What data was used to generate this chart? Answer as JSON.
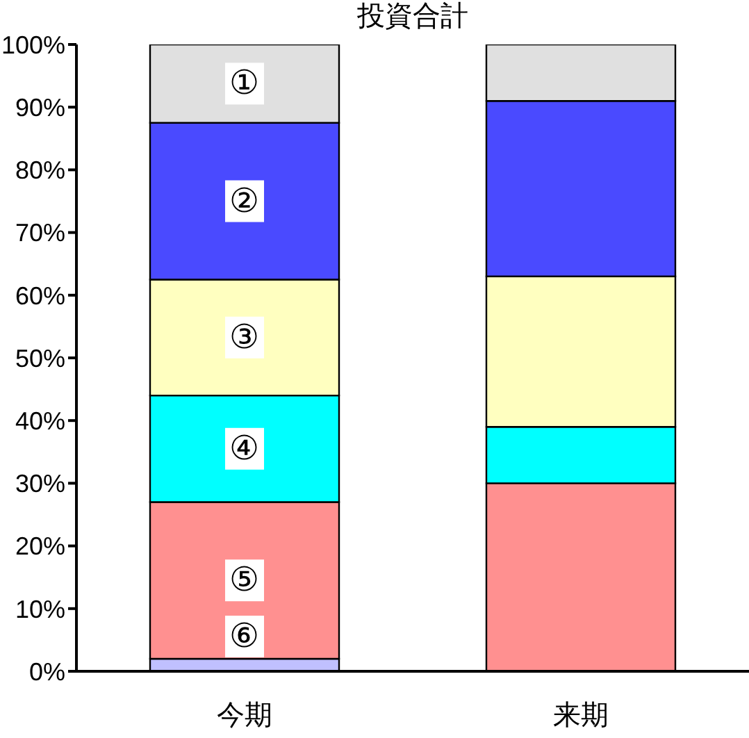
{
  "chart_data": {
    "type": "bar",
    "title": "投資合計",
    "stacked": true,
    "categories": [
      "今期",
      "来期"
    ],
    "series": [
      {
        "name": "⑥",
        "color": "#c0c0ff",
        "values": [
          2,
          0
        ]
      },
      {
        "name": "⑤",
        "color": "#ff9090",
        "values": [
          25,
          30
        ]
      },
      {
        "name": "④",
        "color": "#00ffff",
        "values": [
          17,
          9
        ]
      },
      {
        "name": "③",
        "color": "#ffffc0",
        "values": [
          18.5,
          24
        ]
      },
      {
        "name": "②",
        "color": "#4a4aff",
        "values": [
          25,
          28
        ]
      },
      {
        "name": "①",
        "color": "#e0e0e0",
        "values": [
          12.5,
          9
        ]
      }
    ],
    "ylim": [
      0,
      100
    ],
    "yticks": [
      {
        "value": 0,
        "label": "0%"
      },
      {
        "value": 10,
        "label": "10%"
      },
      {
        "value": 20,
        "label": "20%"
      },
      {
        "value": 30,
        "label": "30%"
      },
      {
        "value": 40,
        "label": "40%"
      },
      {
        "value": 50,
        "label": "50%"
      },
      {
        "value": 60,
        "label": "60%"
      },
      {
        "value": 70,
        "label": "70%"
      },
      {
        "value": 80,
        "label": "80%"
      },
      {
        "value": 90,
        "label": "90%"
      },
      {
        "value": 100,
        "label": "100%"
      }
    ],
    "grid": false,
    "legend": false
  }
}
